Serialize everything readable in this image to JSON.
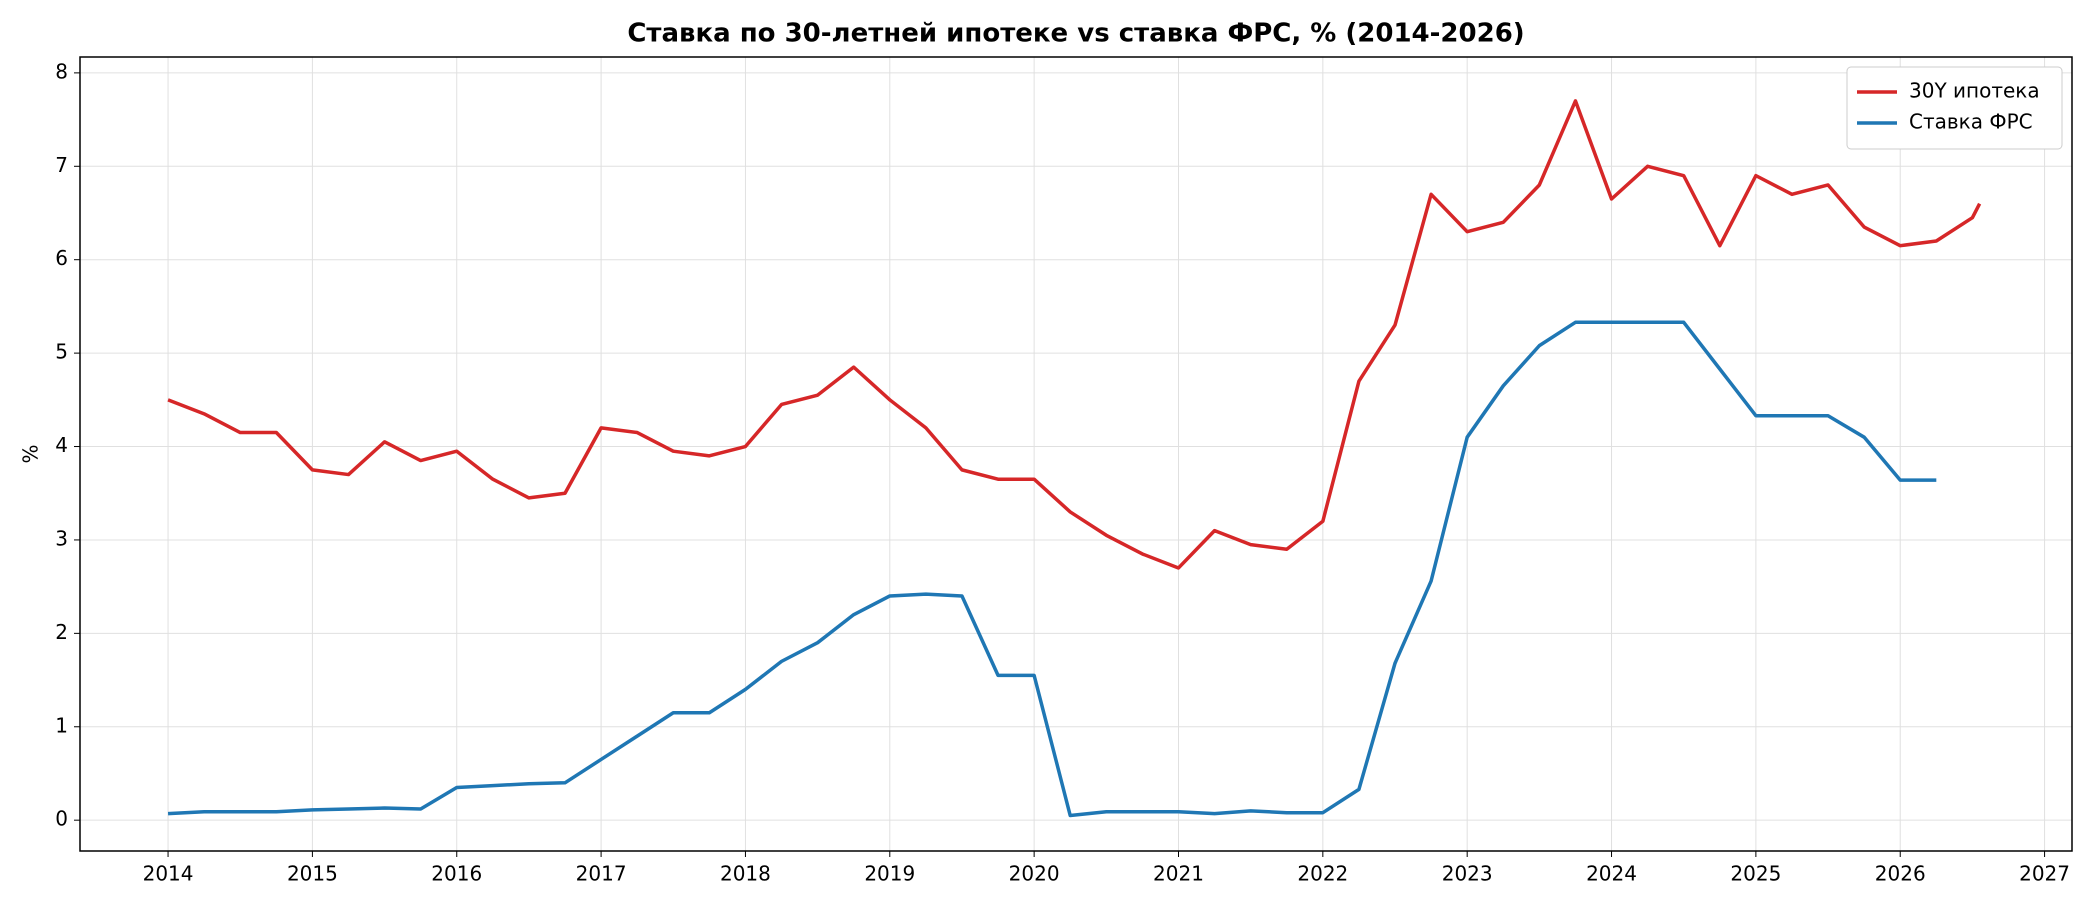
{
  "chart_data": {
    "type": "line",
    "title": "Ставка по 30-летней ипотеке vs ставка ФРС, % (2014-2026)",
    "y_label": "%",
    "x": [
      2014,
      2014.25,
      2014.5,
      2014.75,
      2015,
      2015.25,
      2015.5,
      2015.75,
      2016,
      2016.25,
      2016.5,
      2016.75,
      2017,
      2017.25,
      2017.5,
      2017.75,
      2018,
      2018.25,
      2018.5,
      2018.75,
      2019,
      2019.25,
      2019.5,
      2019.75,
      2020,
      2020.25,
      2020.5,
      2020.75,
      2021,
      2021.25,
      2021.5,
      2021.75,
      2022,
      2022.25,
      2022.5,
      2022.75,
      2023,
      2023.25,
      2023.5,
      2023.75,
      2024,
      2024.25,
      2024.5,
      2024.75,
      2025,
      2025.25,
      2025.5,
      2025.75,
      2026,
      2026.25,
      2026.5,
      2026.55
    ],
    "series": [
      {
        "name": "30Y ипотека",
        "color": "#d62728",
        "values": [
          4.5,
          4.35,
          4.15,
          4.15,
          3.75,
          3.7,
          4.05,
          3.85,
          3.95,
          3.65,
          3.45,
          3.5,
          4.2,
          4.15,
          3.95,
          3.9,
          4.0,
          4.45,
          4.55,
          4.85,
          4.5,
          4.2,
          3.75,
          3.65,
          3.65,
          3.3,
          3.05,
          2.85,
          2.7,
          3.1,
          2.95,
          2.9,
          3.2,
          4.7,
          5.3,
          6.7,
          6.3,
          6.4,
          6.8,
          7.7,
          6.65,
          7.0,
          6.9,
          6.15,
          6.9,
          6.7,
          6.8,
          6.35,
          6.15,
          6.2,
          6.45,
          6.6
        ]
      },
      {
        "name": "Ставка ФРС",
        "color": "#1f77b4",
        "values": [
          0.07,
          0.09,
          0.09,
          0.09,
          0.11,
          0.12,
          0.13,
          0.12,
          0.35,
          0.37,
          0.39,
          0.4,
          0.65,
          0.9,
          1.15,
          1.15,
          1.4,
          1.7,
          1.9,
          2.2,
          2.4,
          2.42,
          2.4,
          1.55,
          1.55,
          0.05,
          0.09,
          0.09,
          0.09,
          0.07,
          0.1,
          0.08,
          0.08,
          0.33,
          1.68,
          2.56,
          4.1,
          4.65,
          5.08,
          5.33,
          5.33,
          5.33,
          5.33,
          4.83,
          4.33,
          4.33,
          4.33,
          4.1,
          3.64,
          3.64,
          null,
          null
        ]
      }
    ],
    "xlim": [
      2013.39,
      2027.19
    ],
    "xticks": [
      2014,
      2015,
      2016,
      2017,
      2018,
      2019,
      2020,
      2021,
      2022,
      2023,
      2024,
      2025,
      2026,
      2027
    ],
    "ylim": [
      -0.33,
      8.17
    ],
    "yticks": [
      0,
      1,
      2,
      3,
      4,
      5,
      6,
      7,
      8
    ],
    "grid": true,
    "legend": "upper-right"
  }
}
